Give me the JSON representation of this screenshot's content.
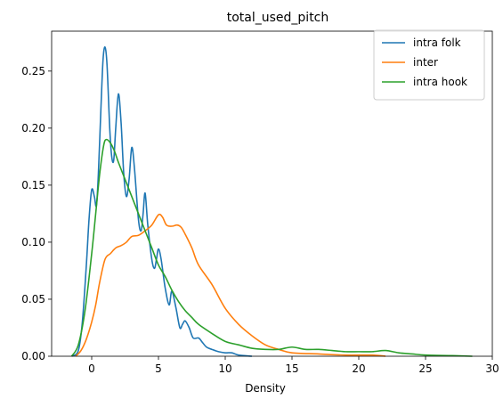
{
  "chart_data": {
    "type": "line",
    "title": "total_used_pitch",
    "xlabel": "Density",
    "ylabel": "",
    "xlim": [
      -3.0,
      30.0
    ],
    "ylim": [
      0.0,
      0.285
    ],
    "x_ticks": [
      0,
      5,
      10,
      15,
      20,
      25,
      30
    ],
    "x_tick_labels": [
      "0",
      "5",
      "10",
      "15",
      "20",
      "25",
      "30"
    ],
    "y_ticks": [
      0.0,
      0.05,
      0.1,
      0.15,
      0.2,
      0.25
    ],
    "y_tick_labels": [
      "0.00",
      "0.05",
      "0.10",
      "0.15",
      "0.20",
      "0.25"
    ],
    "grid": false,
    "legend_position": "top-right",
    "series": [
      {
        "name": "intra folk",
        "color": "#1f77b4",
        "points": [
          [
            -1.5,
            0.0
          ],
          [
            -1.0,
            0.005
          ],
          [
            -0.7,
            0.03
          ],
          [
            -0.4,
            0.08
          ],
          [
            -0.2,
            0.12
          ],
          [
            0.0,
            0.146
          ],
          [
            0.2,
            0.14
          ],
          [
            0.35,
            0.132
          ],
          [
            0.5,
            0.16
          ],
          [
            0.7,
            0.22
          ],
          [
            0.85,
            0.26
          ],
          [
            1.0,
            0.271
          ],
          [
            1.15,
            0.255
          ],
          [
            1.35,
            0.2
          ],
          [
            1.5,
            0.175
          ],
          [
            1.65,
            0.172
          ],
          [
            1.8,
            0.2
          ],
          [
            2.0,
            0.23
          ],
          [
            2.2,
            0.205
          ],
          [
            2.4,
            0.16
          ],
          [
            2.6,
            0.14
          ],
          [
            2.8,
            0.155
          ],
          [
            3.0,
            0.183
          ],
          [
            3.2,
            0.165
          ],
          [
            3.5,
            0.12
          ],
          [
            3.7,
            0.11
          ],
          [
            3.85,
            0.125
          ],
          [
            4.0,
            0.143
          ],
          [
            4.2,
            0.115
          ],
          [
            4.5,
            0.085
          ],
          [
            4.7,
            0.077
          ],
          [
            4.85,
            0.085
          ],
          [
            5.0,
            0.094
          ],
          [
            5.2,
            0.085
          ],
          [
            5.5,
            0.06
          ],
          [
            5.8,
            0.045
          ],
          [
            6.0,
            0.057
          ],
          [
            6.3,
            0.043
          ],
          [
            6.6,
            0.025
          ],
          [
            6.8,
            0.028
          ],
          [
            7.0,
            0.031
          ],
          [
            7.3,
            0.025
          ],
          [
            7.6,
            0.016
          ],
          [
            8.0,
            0.016
          ],
          [
            8.3,
            0.012
          ],
          [
            8.6,
            0.008
          ],
          [
            9.0,
            0.006
          ],
          [
            9.5,
            0.004
          ],
          [
            10.0,
            0.003
          ],
          [
            10.5,
            0.003
          ],
          [
            11.0,
            0.001
          ],
          [
            12.0,
            0.0
          ]
        ]
      },
      {
        "name": "inter",
        "color": "#ff7f0e",
        "points": [
          [
            -1.2,
            0.0
          ],
          [
            -0.8,
            0.005
          ],
          [
            -0.4,
            0.015
          ],
          [
            0.0,
            0.03
          ],
          [
            0.3,
            0.045
          ],
          [
            0.6,
            0.065
          ],
          [
            1.0,
            0.085
          ],
          [
            1.4,
            0.09
          ],
          [
            1.8,
            0.095
          ],
          [
            2.2,
            0.097
          ],
          [
            2.6,
            0.1
          ],
          [
            3.0,
            0.105
          ],
          [
            3.5,
            0.106
          ],
          [
            4.0,
            0.11
          ],
          [
            4.5,
            0.115
          ],
          [
            5.0,
            0.124
          ],
          [
            5.3,
            0.122
          ],
          [
            5.6,
            0.115
          ],
          [
            6.0,
            0.114
          ],
          [
            6.4,
            0.115
          ],
          [
            6.7,
            0.113
          ],
          [
            7.0,
            0.107
          ],
          [
            7.5,
            0.095
          ],
          [
            8.0,
            0.08
          ],
          [
            9.0,
            0.063
          ],
          [
            10.0,
            0.042
          ],
          [
            11.0,
            0.028
          ],
          [
            12.0,
            0.018
          ],
          [
            13.0,
            0.01
          ],
          [
            14.0,
            0.006
          ],
          [
            15.0,
            0.003
          ],
          [
            17.0,
            0.002
          ],
          [
            19.0,
            0.001
          ],
          [
            21.0,
            0.001
          ],
          [
            22.0,
            0.0
          ]
        ]
      },
      {
        "name": "intra hook",
        "color": "#2ca02c",
        "points": [
          [
            -1.5,
            0.0
          ],
          [
            -1.0,
            0.01
          ],
          [
            -0.5,
            0.04
          ],
          [
            0.0,
            0.09
          ],
          [
            0.3,
            0.125
          ],
          [
            0.6,
            0.16
          ],
          [
            0.9,
            0.185
          ],
          [
            1.1,
            0.19
          ],
          [
            1.4,
            0.187
          ],
          [
            1.7,
            0.18
          ],
          [
            2.0,
            0.17
          ],
          [
            2.5,
            0.155
          ],
          [
            3.0,
            0.14
          ],
          [
            3.5,
            0.125
          ],
          [
            4.0,
            0.11
          ],
          [
            4.5,
            0.095
          ],
          [
            5.0,
            0.08
          ],
          [
            5.5,
            0.07
          ],
          [
            6.0,
            0.058
          ],
          [
            6.5,
            0.048
          ],
          [
            7.0,
            0.04
          ],
          [
            7.5,
            0.034
          ],
          [
            8.0,
            0.028
          ],
          [
            9.0,
            0.02
          ],
          [
            10.0,
            0.013
          ],
          [
            11.0,
            0.01
          ],
          [
            12.0,
            0.007
          ],
          [
            13.0,
            0.006
          ],
          [
            14.0,
            0.006
          ],
          [
            15.0,
            0.008
          ],
          [
            16.0,
            0.006
          ],
          [
            17.0,
            0.006
          ],
          [
            18.0,
            0.005
          ],
          [
            19.0,
            0.004
          ],
          [
            20.0,
            0.004
          ],
          [
            21.0,
            0.004
          ],
          [
            22.0,
            0.005
          ],
          [
            23.0,
            0.003
          ],
          [
            24.0,
            0.002
          ],
          [
            25.0,
            0.001
          ],
          [
            27.0,
            0.0005
          ],
          [
            28.5,
            0.0
          ]
        ]
      }
    ]
  }
}
